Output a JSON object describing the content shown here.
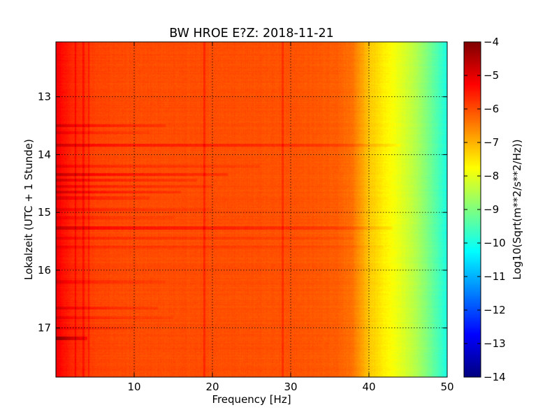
{
  "chart_data": {
    "type": "heatmap",
    "title": "BW HROE E?Z: 2018-11-21",
    "xlabel": "Frequency [Hz]",
    "ylabel": "Lokalzeit (UTC + 1 Stunde)",
    "xlim": [
      0,
      50
    ],
    "ylim": [
      12.05,
      17.85
    ],
    "y_inverted": true,
    "x_ticks": [
      10,
      20,
      30,
      40,
      50
    ],
    "y_ticks": [
      13,
      14,
      15,
      16,
      17
    ],
    "grid": true,
    "colormap": "jet",
    "colorbar": {
      "label": "Log10(Sqrt(m**2/s**2/Hz))",
      "range": [
        -14,
        -4
      ],
      "ticks": [
        -4,
        -5,
        -6,
        -7,
        -8,
        -9,
        -10,
        -11,
        -12,
        -13,
        -14
      ]
    },
    "spectrum_profile": {
      "frequency_hz": [
        0,
        1,
        2,
        5,
        10,
        20,
        30,
        36,
        38,
        40,
        42,
        44,
        46,
        48,
        50
      ],
      "log10_amplitude": [
        -5.1,
        -5.4,
        -5.6,
        -5.9,
        -6.0,
        -6.0,
        -6.05,
        -6.15,
        -6.4,
        -7.2,
        -7.6,
        -8.0,
        -8.5,
        -9.2,
        -10.0
      ]
    },
    "vertical_features_hz": [
      2.5,
      3.5,
      4.2,
      19.0,
      29.0
    ],
    "horizontal_bands": [
      {
        "time": 13.5,
        "f_max": 14,
        "delta": 0.5
      },
      {
        "time": 13.62,
        "f_max": 12,
        "delta": 0.3
      },
      {
        "time": 13.84,
        "f_max": 44,
        "delta": 0.55
      },
      {
        "time": 14.2,
        "f_max": 26,
        "delta": 0.35
      },
      {
        "time": 14.35,
        "f_max": 22,
        "delta": 0.7
      },
      {
        "time": 14.44,
        "f_max": 18,
        "delta": 0.5
      },
      {
        "time": 14.55,
        "f_max": 20,
        "delta": 0.4
      },
      {
        "time": 14.65,
        "f_max": 16,
        "delta": 0.55
      },
      {
        "time": 14.75,
        "f_max": 12,
        "delta": 0.4
      },
      {
        "time": 14.95,
        "f_max": 20,
        "delta": 0.35
      },
      {
        "time": 15.1,
        "f_max": 15,
        "delta": 0.25
      },
      {
        "time": 15.27,
        "f_max": 43,
        "delta": 0.65
      },
      {
        "time": 15.45,
        "f_max": 38,
        "delta": 0.3
      },
      {
        "time": 15.6,
        "f_max": 42,
        "delta": 0.25
      },
      {
        "time": 16.2,
        "f_max": 14,
        "delta": 0.3
      },
      {
        "time": 16.65,
        "f_max": 13,
        "delta": 0.45
      },
      {
        "time": 16.82,
        "f_max": 15,
        "delta": 0.35
      },
      {
        "time": 17.0,
        "f_max": 10,
        "delta": 0.3
      },
      {
        "time": 17.18,
        "f_max": 4,
        "delta": 1.2
      }
    ]
  }
}
